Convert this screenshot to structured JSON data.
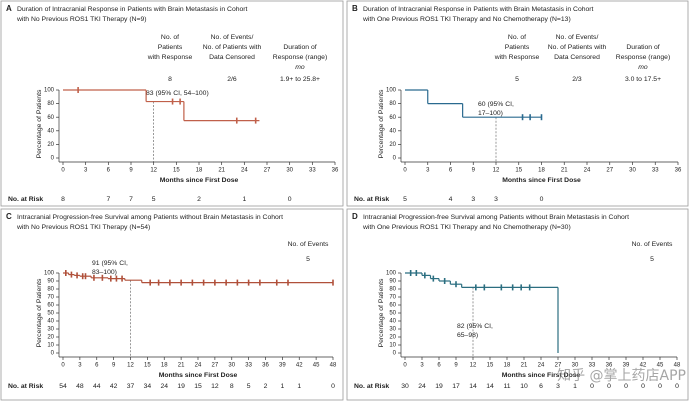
{
  "watermark": "知乎 @掌上药店APP",
  "chart_data": [
    {
      "type": "step",
      "panel_label": "A",
      "title": [
        "Duration of Intracranial Response in Patients with Brain Metastasis in Cohort",
        "with No Previous ROS1 TKI Therapy (N=9)"
      ],
      "table": {
        "columns": [
          {
            "header": [
              "No. of",
              "Patients",
              "with Response"
            ],
            "value": 8
          },
          {
            "header": [
              "No. of Events/",
              "No. of Patients with",
              "Data Censored"
            ],
            "value": "2/6"
          },
          {
            "header": [
              "Duration of",
              "Response (range)"
            ],
            "subheader": "mo",
            "value": "1.9+ to 25.8+"
          }
        ]
      },
      "xlabel": "Months since First Dose",
      "ylabel": "Percentage of Patients",
      "xlim": [
        0,
        36
      ],
      "xticks": [
        0,
        3,
        6,
        9,
        12,
        15,
        18,
        21,
        24,
        27,
        30,
        33,
        36
      ],
      "ylim": [
        0,
        100
      ],
      "yticks": [
        0,
        20,
        40,
        60,
        80,
        100
      ],
      "color": "#c0604a",
      "x": [
        0,
        11,
        16,
        26
      ],
      "values": [
        100,
        83,
        55,
        55
      ],
      "censored": {
        "x": [
          2,
          14.5,
          15.5,
          23,
          25.5
        ],
        "values": [
          100,
          83,
          83,
          55,
          55
        ]
      },
      "landmark": {
        "x": 12,
        "value": 83,
        "label": [
          "83 (95% CI, 54–100)"
        ]
      },
      "at_risk": {
        "label": "No. at Risk",
        "x": [
          0,
          6,
          9,
          12,
          18,
          24,
          30
        ],
        "values": [
          8,
          7,
          7,
          5,
          2,
          1,
          0
        ]
      }
    },
    {
      "type": "step",
      "panel_label": "B",
      "title": [
        "Duration of Intracranial Response in Patients with Brain Metastasis in Cohort",
        "with One Previous ROS1 TKI Therapy and No Chemotherapy (N=13)"
      ],
      "table": {
        "columns": [
          {
            "header": [
              "No. of",
              "Patients",
              "with Response"
            ],
            "value": 5
          },
          {
            "header": [
              "No. of Events/",
              "No. of Patients with",
              "Data Censored"
            ],
            "value": "2/3"
          },
          {
            "header": [
              "Duration of",
              "Response (range)"
            ],
            "subheader": "mo",
            "value": "3.0 to 17.5+"
          }
        ]
      },
      "xlabel": "Months since First Dose",
      "ylabel": "Percentage of Patients",
      "xlim": [
        0,
        36
      ],
      "xticks": [
        0,
        3,
        6,
        9,
        12,
        15,
        18,
        21,
        24,
        27,
        30,
        33,
        36
      ],
      "ylim": [
        0,
        100
      ],
      "yticks": [
        0,
        20,
        40,
        60,
        80,
        100
      ],
      "color": "#2a6a8f",
      "x": [
        0,
        3,
        7.6,
        18
      ],
      "values": [
        100,
        80,
        60,
        60
      ],
      "censored": {
        "x": [
          15.5,
          16.5,
          18
        ],
        "values": [
          60,
          60,
          60
        ]
      },
      "landmark": {
        "x": 12,
        "value": 60,
        "label": [
          "60 (95% CI,",
          "17–100)"
        ]
      },
      "at_risk": {
        "label": "No. at Risk",
        "x": [
          0,
          6,
          9,
          12,
          18
        ],
        "values": [
          5,
          4,
          3,
          3,
          0
        ]
      }
    },
    {
      "type": "step",
      "panel_label": "C",
      "title": [
        "Intracranial Progression-free Survival among Patients without Brain Metastasis in Cohort",
        "with No Previous ROS1 TKI Therapy (N=54)"
      ],
      "events": {
        "header": "No. of Events",
        "value": 5
      },
      "xlabel": "Months since First Dose",
      "ylabel": "Percentage of Patients",
      "xlim": [
        0,
        48
      ],
      "xticks": [
        0,
        3,
        6,
        9,
        12,
        15,
        18,
        21,
        24,
        27,
        30,
        33,
        36,
        39,
        42,
        45,
        48
      ],
      "ylim": [
        0,
        100
      ],
      "yticks": [
        0,
        10,
        20,
        30,
        40,
        50,
        60,
        70,
        80,
        90,
        100
      ],
      "color": "#b0503a",
      "x": [
        0,
        1,
        2,
        3,
        5,
        8,
        11,
        14,
        48
      ],
      "values": [
        100,
        98,
        97,
        96,
        94,
        93,
        91,
        88,
        88
      ],
      "censored": {
        "x": [
          0.5,
          1.5,
          2.5,
          3.5,
          4,
          5.5,
          7,
          8.5,
          9.5,
          10.5,
          15.5,
          17,
          19,
          21,
          23,
          25,
          27,
          29,
          31,
          33,
          35,
          38,
          40,
          48
        ],
        "values": [
          100,
          98,
          97,
          96,
          96,
          94,
          94,
          93,
          93,
          93,
          88,
          88,
          88,
          88,
          88,
          88,
          88,
          88,
          88,
          88,
          88,
          88,
          88,
          88
        ]
      },
      "landmark": {
        "x": 12,
        "value": 91,
        "label": [
          "91 (95% CI,",
          "83–100)"
        ]
      },
      "at_risk": {
        "label": "No. at Risk",
        "x": [
          0,
          3,
          6,
          9,
          12,
          15,
          18,
          21,
          24,
          27,
          30,
          33,
          36,
          39,
          42,
          48
        ],
        "values": [
          54,
          48,
          44,
          42,
          37,
          34,
          24,
          19,
          15,
          12,
          8,
          5,
          2,
          1,
          1,
          0
        ]
      }
    },
    {
      "type": "step",
      "panel_label": "D",
      "title": [
        "Intracranial Progression-free Survival among Patients without Brain Metastasis in Cohort",
        "with One Previous ROS1 TKI Therapy and No Chemotherapy (N=30)"
      ],
      "events": {
        "header": "No. of Events",
        "value": 5
      },
      "xlabel": "Months since First Dose",
      "ylabel": "Percentage of Patients",
      "xlim": [
        0,
        48
      ],
      "xticks": [
        0,
        3,
        6,
        9,
        12,
        15,
        18,
        21,
        24,
        27,
        30,
        33,
        36,
        39,
        42,
        45,
        48
      ],
      "ylim": [
        0,
        100
      ],
      "yticks": [
        0,
        10,
        20,
        30,
        40,
        50,
        60,
        70,
        80,
        90,
        100
      ],
      "color": "#2b6e80",
      "x": [
        0,
        3,
        4.5,
        6,
        8,
        10,
        27
      ],
      "values": [
        100,
        97,
        93,
        90,
        86,
        82,
        0
      ],
      "censored": {
        "x": [
          1,
          2,
          3.5,
          5,
          7,
          9,
          12.5,
          14,
          17,
          19,
          20.5,
          22
        ],
        "values": [
          100,
          100,
          97,
          93,
          90,
          86,
          82,
          82,
          82,
          82,
          82,
          82
        ]
      },
      "landmark": {
        "x": 12,
        "value": 82,
        "label": [
          "82 (95% CI,",
          "65–98)"
        ]
      },
      "at_risk": {
        "label": "No. at Risk",
        "x": [
          0,
          3,
          6,
          9,
          12,
          15,
          18,
          21,
          24,
          27,
          30,
          33,
          36,
          39,
          42,
          45,
          48
        ],
        "values": [
          30,
          24,
          19,
          17,
          14,
          14,
          11,
          10,
          6,
          3,
          1,
          0,
          0,
          0,
          0,
          0,
          0
        ]
      }
    }
  ]
}
